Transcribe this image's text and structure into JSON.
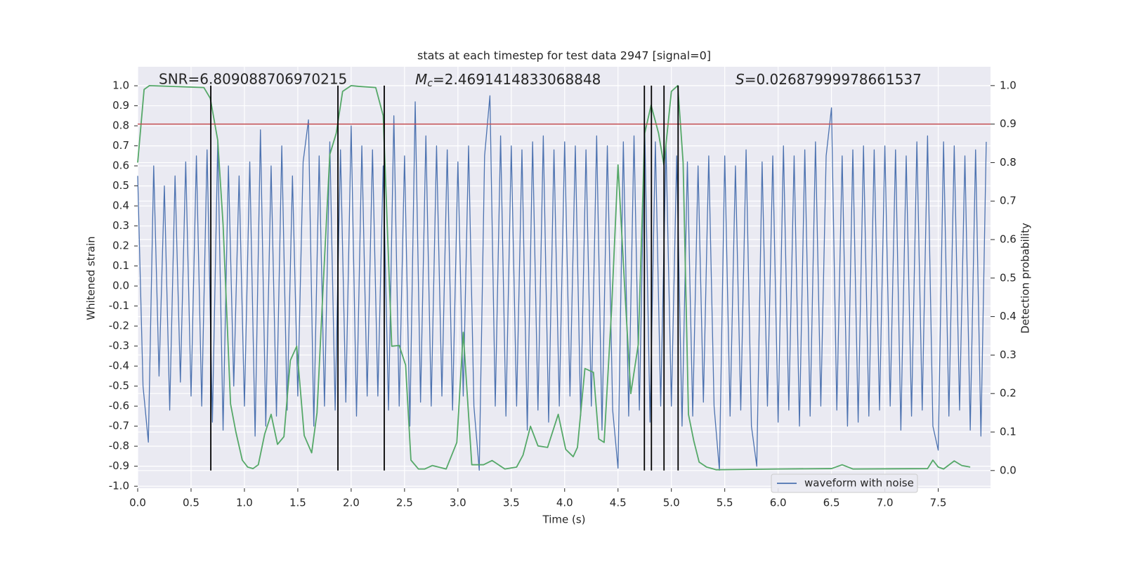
{
  "chart_data": {
    "type": "line",
    "title": "stats at each timestep for test data 2947 [signal=0]",
    "xlabel": "Time (s)",
    "ylabel": "Whitened strain",
    "y2label": "Detection probability",
    "annotations": [
      {
        "text": "SNR=6.809088706970215"
      },
      {
        "symbol": "M",
        "subscript": "c",
        "text": "=2.4691414833068848"
      },
      {
        "symbol": "S",
        "text": "=0.02687999978661537"
      }
    ],
    "xlim": [
      0,
      7.99
    ],
    "ylim": [
      -1.01,
      1.095
    ],
    "y2lim": [
      -0.046,
      1.049
    ],
    "xticks": [
      {
        "value": 0,
        "label": "0.0"
      },
      0.5,
      {
        "value": 1,
        "label": "1.0"
      },
      1.5,
      {
        "value": 2,
        "label": "2.0"
      },
      2.5,
      {
        "value": 3,
        "label": "3.0"
      },
      3.5,
      {
        "value": 4,
        "label": "4.0"
      },
      4.5,
      {
        "value": 5,
        "label": "5.0"
      },
      5.5,
      {
        "value": 6,
        "label": "6.0"
      },
      6.5,
      {
        "value": 7,
        "label": "7.0"
      },
      7.5
    ],
    "yticks": [
      {
        "value": -1,
        "label": "-1.0"
      },
      -0.9,
      -0.8,
      -0.7,
      -0.6,
      -0.5,
      -0.4,
      -0.3,
      -0.2,
      -0.1,
      {
        "value": 0,
        "label": "0.0"
      },
      0.1,
      0.2,
      0.3,
      0.4,
      0.5,
      0.6,
      0.7,
      0.8,
      0.9,
      {
        "value": 1,
        "label": "1.0"
      }
    ],
    "y2ticks": [
      {
        "value": 0,
        "label": "0.0"
      },
      0.1,
      0.2,
      0.3,
      0.4,
      0.5,
      0.6,
      0.7,
      0.8,
      0.9,
      {
        "value": 1,
        "label": "1.0"
      }
    ],
    "grid": true,
    "legend": "lower right",
    "series": [
      {
        "name": "waveform with noise",
        "color": "#4c72b0",
        "x": [
          0,
          0.05,
          0.1,
          0.15,
          0.2,
          0.25,
          0.3,
          0.35,
          0.4,
          0.45,
          0.5,
          0.55,
          0.6,
          0.65,
          0.7,
          0.75,
          0.8,
          0.85,
          0.9,
          0.95,
          1,
          1.05,
          1.1,
          1.15,
          1.2,
          1.25,
          1.3,
          1.35,
          1.4,
          1.45,
          1.5,
          1.55,
          1.6,
          1.65,
          1.7,
          1.75,
          1.8,
          1.85,
          1.9,
          1.95,
          2,
          2.05,
          2.1,
          2.15,
          2.2,
          2.25,
          2.3,
          2.35,
          2.4,
          2.45,
          2.5,
          2.55,
          2.6,
          2.65,
          2.7,
          2.75,
          2.8,
          2.85,
          2.9,
          2.95,
          3,
          3.05,
          3.1,
          3.15,
          3.2,
          3.25,
          3.3,
          3.35,
          3.4,
          3.45,
          3.5,
          3.55,
          3.6,
          3.65,
          3.7,
          3.75,
          3.8,
          3.85,
          3.9,
          3.95,
          4,
          4.05,
          4.1,
          4.15,
          4.2,
          4.25,
          4.3,
          4.35,
          4.4,
          4.45,
          4.5,
          4.55,
          4.6,
          4.65,
          4.7,
          4.75,
          4.8,
          4.85,
          4.9,
          4.95,
          5,
          5.05,
          5.1,
          5.15,
          5.2,
          5.25,
          5.3,
          5.35,
          5.4,
          5.45,
          5.5,
          5.55,
          5.6,
          5.65,
          5.7,
          5.75,
          5.8,
          5.85,
          5.9,
          5.95,
          6,
          6.05,
          6.1,
          6.15,
          6.2,
          6.25,
          6.3,
          6.35,
          6.4,
          6.45,
          6.5,
          6.55,
          6.6,
          6.65,
          6.7,
          6.75,
          6.8,
          6.85,
          6.9,
          6.95,
          7,
          7.05,
          7.1,
          7.15,
          7.2,
          7.25,
          7.3,
          7.35,
          7.4,
          7.45,
          7.5,
          7.55,
          7.6,
          7.65,
          7.7,
          7.75,
          7.8,
          7.85,
          7.9,
          7.95
        ],
        "values": [
          0.55,
          -0.5,
          -0.78,
          0.6,
          -0.45,
          0.5,
          -0.62,
          0.55,
          -0.48,
          0.62,
          -0.55,
          0.65,
          -0.6,
          0.68,
          -0.68,
          0.72,
          -0.72,
          0.6,
          -0.5,
          0.55,
          -0.6,
          0.62,
          -0.75,
          0.78,
          -0.7,
          0.6,
          -0.65,
          0.7,
          -0.62,
          0.55,
          -0.55,
          0.62,
          0.83,
          -0.7,
          0.65,
          -0.6,
          0.72,
          -0.62,
          0.68,
          -0.58,
          0.8,
          -0.65,
          0.7,
          -0.55,
          0.68,
          -0.55,
          0.6,
          -0.62,
          0.85,
          -0.6,
          0.65,
          -0.7,
          0.92,
          -0.58,
          0.75,
          -0.6,
          0.7,
          -0.55,
          0.68,
          -0.62,
          0.62,
          -0.55,
          0.7,
          -0.6,
          -0.92,
          0.65,
          0.95,
          -0.6,
          0.75,
          -0.65,
          0.7,
          -0.6,
          0.68,
          -0.72,
          0.72,
          -0.62,
          0.75,
          -0.68,
          0.68,
          -0.6,
          0.72,
          -0.55,
          0.7,
          -0.65,
          0.68,
          -0.6,
          0.75,
          -0.72,
          0.7,
          -0.62,
          -0.91,
          0.72,
          -0.65,
          0.75,
          -0.62,
          0.8,
          -0.68,
          0.72,
          -0.6,
          0.7,
          -0.6,
          0.65,
          -0.7,
          0.62,
          -0.65,
          0.6,
          -0.58,
          0.65,
          -0.6,
          -0.92,
          0.65,
          -0.65,
          0.6,
          -0.62,
          0.68,
          -0.7,
          -0.9,
          0.62,
          -0.6,
          0.65,
          -0.68,
          0.7,
          -0.62,
          0.65,
          -0.7,
          0.68,
          -0.65,
          0.72,
          -0.6,
          0.65,
          0.89,
          -0.62,
          0.65,
          -0.7,
          0.68,
          -0.68,
          0.7,
          -0.65,
          0.68,
          -0.62,
          0.7,
          -0.6,
          0.68,
          -0.72,
          0.65,
          -0.65,
          0.72,
          -0.62,
          0.75,
          -0.7,
          -0.82,
          0.72,
          -0.65,
          0.7,
          -0.62,
          0.65,
          -0.72,
          0.68,
          -0.75,
          0.72
        ]
      },
      {
        "color": "#55a868",
        "axis": "y2",
        "x": [
          0,
          0.06,
          0.11,
          0.62,
          0.68,
          0.75,
          0.8,
          0.87,
          0.92,
          0.98,
          1.03,
          1.08,
          1.13,
          1.19,
          1.25,
          1.31,
          1.37,
          1.43,
          1.49,
          1.56,
          1.63,
          1.68,
          1.74,
          1.8,
          1.86,
          1.92,
          2,
          2.07,
          2.23,
          2.3,
          2.38,
          2.45,
          2.51,
          2.56,
          2.63,
          2.69,
          2.76,
          2.89,
          2.99,
          3.05,
          3.13,
          3.24,
          3.32,
          3.44,
          3.55,
          3.61,
          3.68,
          3.75,
          3.84,
          3.94,
          4.01,
          4.08,
          4.12,
          4.19,
          4.27,
          4.32,
          4.37,
          4.44,
          4.5,
          4.57,
          4.62,
          4.69,
          4.75,
          4.81,
          4.88,
          4.93,
          5,
          5.06,
          5.11,
          5.16,
          5.21,
          5.26,
          5.33,
          5.42,
          6,
          6.5,
          6.6,
          6.7,
          7.4,
          7.45,
          7.5,
          7.55,
          7.65,
          7.72,
          7.8
        ],
        "values": [
          0.8,
          0.99,
          1,
          0.995,
          0.967,
          0.858,
          0.639,
          0.173,
          0.1,
          0.027,
          0.009,
          0.005,
          0.015,
          0.095,
          0.146,
          0.068,
          0.088,
          0.286,
          0.323,
          0.091,
          0.046,
          0.15,
          0.493,
          0.821,
          0.876,
          0.985,
          1,
          0.998,
          0.995,
          0.922,
          0.323,
          0.325,
          0.274,
          0.027,
          0.004,
          0.004,
          0.013,
          0.004,
          0.073,
          0.359,
          0.015,
          0.015,
          0.026,
          0.004,
          0.009,
          0.04,
          0.115,
          0.064,
          0.06,
          0.146,
          0.055,
          0.036,
          0.06,
          0.265,
          0.255,
          0.082,
          0.073,
          0.42,
          0.794,
          0.438,
          0.2,
          0.328,
          0.876,
          0.949,
          0.876,
          0.794,
          0.985,
          1,
          0.8,
          0.146,
          0.077,
          0.022,
          0.009,
          0.002,
          0.004,
          0.005,
          0.015,
          0.004,
          0.005,
          0.027,
          0.009,
          0.004,
          0.025,
          0.013,
          0.009
        ]
      }
    ],
    "hlines": [
      {
        "value": 0.9,
        "axis": "y2",
        "color": "#c44e52"
      }
    ],
    "vlines": {
      "x": [
        0.685,
        1.876,
        2.31,
        4.747,
        4.813,
        4.931,
        5.063
      ],
      "y2": [
        0,
        1
      ],
      "color": "#000000"
    }
  }
}
